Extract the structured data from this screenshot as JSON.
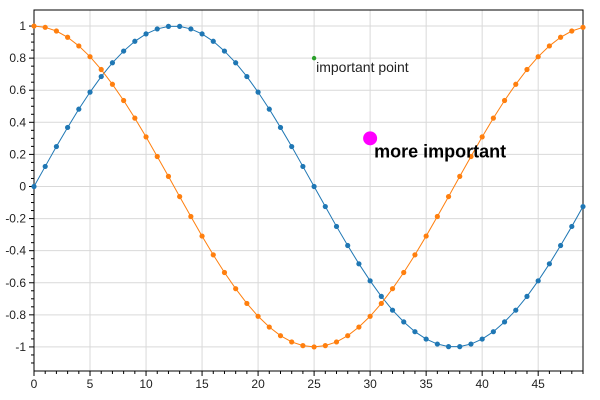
{
  "chart_data": {
    "type": "scatter",
    "title": "",
    "xlabel": "",
    "ylabel": "",
    "xlim": [
      0,
      49
    ],
    "ylim": [
      -1.15,
      1.1
    ],
    "grid": true,
    "x_ticks": [
      0,
      5,
      10,
      15,
      20,
      25,
      30,
      35,
      40,
      45
    ],
    "y_ticks": [
      1,
      0.8,
      0.6,
      0.4,
      0.2,
      0,
      -0.2,
      -0.4,
      -0.6,
      -0.8,
      -1
    ],
    "x_tick_labels": [
      "0",
      "5",
      "10",
      "15",
      "20",
      "25",
      "30",
      "35",
      "40",
      "45"
    ],
    "y_tick_labels": [
      "1",
      "0.8",
      "0.6",
      "0.4",
      "0.2",
      "0",
      "-0.2",
      "-0.4",
      "-0.6",
      "-0.8",
      "-1"
    ],
    "x": [
      0,
      1,
      2,
      3,
      4,
      5,
      6,
      7,
      8,
      9,
      10,
      11,
      12,
      13,
      14,
      15,
      16,
      17,
      18,
      19,
      20,
      21,
      22,
      23,
      24,
      25,
      26,
      27,
      28,
      29,
      30,
      31,
      32,
      33,
      34,
      35,
      36,
      37,
      38,
      39,
      40,
      41,
      42,
      43,
      44,
      45,
      46,
      47,
      48,
      49
    ],
    "series": [
      {
        "color": "#1f77b4",
        "values": [
          0,
          0.125,
          0.249,
          0.368,
          0.482,
          0.588,
          0.685,
          0.771,
          0.844,
          0.905,
          0.951,
          0.982,
          0.998,
          0.998,
          0.982,
          0.951,
          0.905,
          0.844,
          0.771,
          0.685,
          0.588,
          0.482,
          0.368,
          0.249,
          0.125,
          0,
          -0.125,
          -0.249,
          -0.368,
          -0.482,
          -0.588,
          -0.685,
          -0.771,
          -0.844,
          -0.905,
          -0.951,
          -0.982,
          -0.998,
          -0.998,
          -0.982,
          -0.951,
          -0.905,
          -0.844,
          -0.771,
          -0.685,
          -0.588,
          -0.482,
          -0.368,
          -0.249,
          -0.125
        ]
      },
      {
        "color": "#ff7f0e",
        "values": [
          1,
          0.992,
          0.969,
          0.93,
          0.876,
          0.809,
          0.729,
          0.637,
          0.536,
          0.426,
          0.309,
          0.187,
          0.063,
          -0.063,
          -0.187,
          -0.309,
          -0.426,
          -0.536,
          -0.637,
          -0.729,
          -0.809,
          -0.876,
          -0.93,
          -0.969,
          -0.992,
          -1,
          -0.992,
          -0.969,
          -0.93,
          -0.876,
          -0.809,
          -0.729,
          -0.637,
          -0.536,
          -0.426,
          -0.309,
          -0.187,
          -0.063,
          0.063,
          0.187,
          0.309,
          0.426,
          0.536,
          0.637,
          0.729,
          0.809,
          0.876,
          0.93,
          0.969,
          0.992
        ]
      }
    ],
    "annotations": [
      {
        "text": "important point",
        "x": 25,
        "y": 0.8,
        "marker_color": "#2ca02c",
        "style": "small"
      },
      {
        "text": "more important",
        "x": 30,
        "y": 0.3,
        "marker_color": "#ff00ff",
        "style": "big"
      }
    ]
  }
}
